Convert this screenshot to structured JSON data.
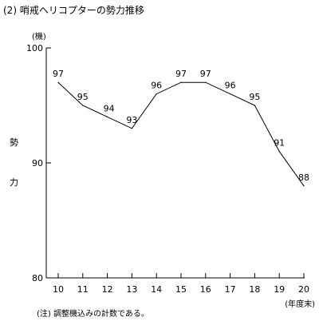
{
  "title": "(2) 哨戒ヘリコプターの勢力推移",
  "note": "(注) 調整機込みの計数である。",
  "chart_data": {
    "type": "line",
    "title": "(2) 哨戒ヘリコプターの勢力推移",
    "ylabel": "勢力",
    "y_unit": "(機)",
    "x_unit": "(年度末)",
    "ylim": [
      80,
      100
    ],
    "yticks": [
      "80",
      "90",
      "100"
    ],
    "grid": false,
    "categories": [
      "10",
      "11",
      "12",
      "13",
      "14",
      "15",
      "16",
      "17",
      "18",
      "19",
      "20"
    ],
    "values": [
      97,
      95,
      94,
      93,
      96,
      97,
      97,
      96,
      95,
      91,
      88
    ],
    "value_labels": [
      "97",
      "95",
      "94",
      "93",
      "96",
      "97",
      "97",
      "96",
      "95",
      "91",
      "88"
    ]
  }
}
